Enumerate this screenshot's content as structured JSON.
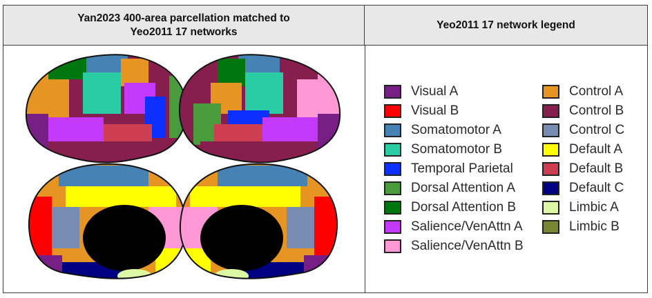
{
  "left_header": {
    "line1": "Yan2023 400-area parcellation matched to",
    "line2": "Yeo2011 17 networks"
  },
  "right_header": {
    "title": "Yeo2011 17 network legend"
  },
  "legend": {
    "column1": [
      {
        "label": "Visual A",
        "color": "#781f86"
      },
      {
        "label": "Visual B",
        "color": "#ff0000"
      },
      {
        "label": "Somatomotor A",
        "color": "#4682b4"
      },
      {
        "label": "Somatomotor B",
        "color": "#2acca4"
      },
      {
        "label": "Temporal Parietal",
        "color": "#0c30ff"
      },
      {
        "label": "Dorsal Attention A",
        "color": "#4a9b3c"
      },
      {
        "label": "Dorsal Attention B",
        "color": "#00760e"
      },
      {
        "label": "Salience/VenAttn A",
        "color": "#c43afa"
      },
      {
        "label": "Salience/VenAttn B",
        "color": "#ff98d5"
      }
    ],
    "column2": [
      {
        "label": "Control A",
        "color": "#e69422"
      },
      {
        "label": "Control B",
        "color": "#871f4e"
      },
      {
        "label": "Control C",
        "color": "#778cb0"
      },
      {
        "label": "Default A",
        "color": "#ffff00"
      },
      {
        "label": "Default B",
        "color": "#cd3e50"
      },
      {
        "label": "Default C",
        "color": "#000082"
      },
      {
        "label": "Limbic A",
        "color": "#dcf8a4"
      },
      {
        "label": "Limbic B",
        "color": "#7a8732"
      }
    ]
  }
}
